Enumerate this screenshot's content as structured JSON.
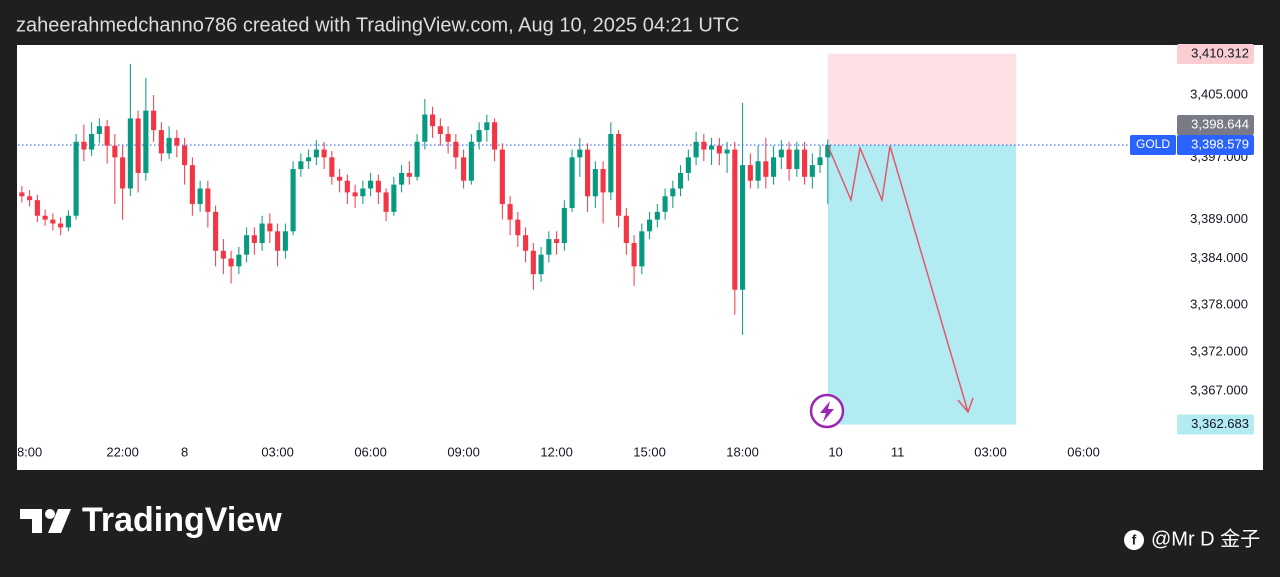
{
  "header": {
    "text": "zaheerahmedchanno786 created with TradingView.com, Aug 10, 2025 04:21 UTC"
  },
  "footer": {
    "logo": "TradingView",
    "credit": "@Mr D 金子"
  },
  "chart_data": {
    "type": "candlestick",
    "up_color": "#089981",
    "down_color": "#f23645",
    "x": [
      0,
      1,
      2,
      3,
      4,
      5,
      6,
      7,
      8,
      9,
      10,
      11,
      12,
      13,
      14,
      15,
      16,
      17,
      18,
      19,
      20,
      21,
      22,
      23,
      24,
      25,
      26,
      27,
      28,
      29,
      30,
      31,
      32,
      33,
      34,
      35,
      36,
      37,
      38,
      39,
      40,
      41,
      42,
      43,
      44,
      45,
      46,
      47,
      48,
      49,
      50,
      51,
      52,
      53,
      54,
      55,
      56,
      57,
      58,
      59,
      60,
      61,
      62,
      63,
      64,
      65,
      66,
      67,
      68,
      69,
      70,
      71,
      72,
      73,
      74,
      75,
      76,
      77,
      78,
      79,
      80,
      81,
      82,
      83,
      84,
      85,
      86,
      87,
      88,
      89,
      90,
      91,
      92,
      93,
      94,
      95,
      96,
      97,
      98,
      99,
      100,
      101,
      102,
      103,
      104
    ],
    "open": [
      3392.5,
      3392.0,
      3391.5,
      3389.5,
      3389.0,
      3388.5,
      3388.0,
      3389.5,
      3399.0,
      3398.0,
      3400.0,
      3401.0,
      3398.5,
      3397.0,
      3393.0,
      3402.0,
      3395.0,
      3403.0,
      3400.5,
      3397.5,
      3399.5,
      3398.5,
      3396.0,
      3391.0,
      3393.0,
      3390.0,
      3385.0,
      3384.0,
      3383.0,
      3384.5,
      3387.0,
      3386.0,
      3388.5,
      3387.5,
      3385.0,
      3387.5,
      3395.5,
      3396.5,
      3397.0,
      3398.0,
      3397.0,
      3394.5,
      3394.0,
      3392.5,
      3392.0,
      3393.0,
      3394.0,
      3392.5,
      3390.0,
      3393.5,
      3395.0,
      3394.5,
      3399.0,
      3402.5,
      3401.0,
      3400.0,
      3399.0,
      3397.0,
      3394.0,
      3399.0,
      3400.5,
      3401.5,
      3398.0,
      3391.0,
      3389.0,
      3387.0,
      3385.0,
      3382.0,
      3384.5,
      3386.5,
      3386.0,
      3390.5,
      3397.0,
      3398.0,
      3392.0,
      3395.5,
      3392.5,
      3400.0,
      3389.5,
      3386.0,
      3383.0,
      3387.5,
      3389.0,
      3390.0,
      3392.0,
      3393.0,
      3395.0,
      3397.0,
      3399.0,
      3398.0,
      3398.5,
      3397.5,
      3398.0,
      3380.0,
      3396.0,
      3394.0,
      3396.5,
      3394.5,
      3397.0,
      3398.0,
      3395.5,
      3398.0,
      3394.5,
      3396.0,
      3397.0
    ],
    "high": [
      3393.3,
      3392.8,
      3392.2,
      3390.3,
      3389.8,
      3389.3,
      3390.2,
      3400.0,
      3401.2,
      3401.5,
      3402.0,
      3401.8,
      3400.0,
      3398.5,
      3409.0,
      3403.0,
      3407.2,
      3405.0,
      3401.5,
      3401.0,
      3400.5,
      3399.5,
      3397.0,
      3394.0,
      3394.0,
      3390.8,
      3386.5,
      3385.0,
      3385.5,
      3388.0,
      3388.0,
      3389.5,
      3389.8,
      3388.5,
      3388.5,
      3396.5,
      3397.5,
      3398.0,
      3399.2,
      3399.0,
      3397.8,
      3395.5,
      3394.8,
      3393.5,
      3394.0,
      3395.0,
      3394.8,
      3393.0,
      3394.5,
      3396.0,
      3396.5,
      3400.0,
      3404.5,
      3403.5,
      3402.0,
      3401.0,
      3400.0,
      3398.0,
      3400.0,
      3401.5,
      3402.5,
      3402.0,
      3398.8,
      3392.0,
      3390.0,
      3388.0,
      3386.0,
      3385.5,
      3387.5,
      3387.5,
      3391.5,
      3398.0,
      3399.5,
      3398.8,
      3396.5,
      3396.5,
      3401.5,
      3400.5,
      3390.5,
      3387.0,
      3388.5,
      3390.0,
      3391.0,
      3393.0,
      3394.0,
      3396.0,
      3398.0,
      3400.3,
      3400.0,
      3399.5,
      3399.5,
      3399.0,
      3399.0,
      3404.0,
      3397.5,
      3398.5,
      3399.5,
      3398.5,
      3399.2,
      3399.0,
      3399.0,
      3399.0,
      3397.5,
      3398.5,
      3399.3
    ],
    "low": [
      3391.2,
      3390.7,
      3388.7,
      3388.2,
      3387.6,
      3387.0,
      3387.5,
      3389.0,
      3396.5,
      3397.2,
      3398.8,
      3396.2,
      3391.0,
      3389.0,
      3392.0,
      3392.5,
      3394.0,
      3399.0,
      3396.5,
      3396.8,
      3397.0,
      3393.5,
      3389.5,
      3390.0,
      3388.0,
      3383.0,
      3382.0,
      3380.8,
      3382.0,
      3383.5,
      3384.5,
      3385.0,
      3386.0,
      3383.0,
      3384.0,
      3387.0,
      3394.5,
      3395.5,
      3396.0,
      3395.5,
      3393.5,
      3392.5,
      3391.0,
      3390.5,
      3391.0,
      3392.0,
      3391.0,
      3388.8,
      3389.5,
      3392.5,
      3393.5,
      3394.0,
      3398.0,
      3399.5,
      3398.5,
      3397.5,
      3395.5,
      3393.0,
      3393.5,
      3398.0,
      3399.0,
      3396.5,
      3389.0,
      3387.0,
      3385.5,
      3383.5,
      3380.0,
      3381.0,
      3383.5,
      3384.5,
      3385.0,
      3390.0,
      3394.5,
      3390.0,
      3390.5,
      3388.5,
      3391.5,
      3388.0,
      3384.5,
      3380.5,
      3382.0,
      3386.5,
      3388.0,
      3389.0,
      3390.5,
      3392.0,
      3394.0,
      3396.0,
      3396.5,
      3396.0,
      3396.0,
      3395.0,
      3376.8,
      3374.2,
      3393.0,
      3393.0,
      3393.0,
      3393.5,
      3395.5,
      3394.0,
      3394.5,
      3393.5,
      3393.0,
      3395.0,
      3391.0
    ],
    "close": [
      3392.0,
      3391.5,
      3389.5,
      3389.0,
      3388.5,
      3388.0,
      3389.5,
      3399.0,
      3398.0,
      3400.0,
      3401.0,
      3398.5,
      3397.0,
      3393.0,
      3402.0,
      3395.0,
      3403.0,
      3400.5,
      3397.5,
      3399.5,
      3398.5,
      3396.0,
      3391.0,
      3393.0,
      3390.0,
      3385.0,
      3384.0,
      3383.0,
      3384.5,
      3387.0,
      3386.0,
      3388.5,
      3387.5,
      3385.0,
      3387.5,
      3395.5,
      3396.5,
      3397.0,
      3398.0,
      3397.0,
      3394.5,
      3394.0,
      3392.5,
      3392.0,
      3393.0,
      3394.0,
      3392.5,
      3390.0,
      3393.5,
      3395.0,
      3394.5,
      3399.0,
      3402.5,
      3401.0,
      3400.0,
      3399.0,
      3397.0,
      3394.0,
      3399.0,
      3400.5,
      3401.5,
      3398.0,
      3391.0,
      3389.0,
      3387.0,
      3385.0,
      3382.0,
      3384.5,
      3386.5,
      3386.0,
      3390.5,
      3397.0,
      3398.0,
      3392.0,
      3395.5,
      3392.5,
      3400.0,
      3389.5,
      3386.0,
      3383.0,
      3387.5,
      3389.0,
      3390.0,
      3392.0,
      3393.0,
      3395.0,
      3397.0,
      3399.0,
      3398.0,
      3398.5,
      3397.5,
      3398.0,
      3380.0,
      3396.0,
      3394.0,
      3396.5,
      3394.5,
      3397.0,
      3398.0,
      3395.5,
      3398.0,
      3394.5,
      3396.0,
      3397.0,
      3398.6
    ],
    "xlim": [
      -0.5,
      148.8
    ],
    "xticks": [
      {
        "value": 1,
        "label": "8:00"
      },
      {
        "value": 13,
        "label": "22:00"
      },
      {
        "value": 21,
        "label": "8"
      },
      {
        "value": 33,
        "label": "03:00"
      },
      {
        "value": 45,
        "label": "06:00"
      },
      {
        "value": 57,
        "label": "09:00"
      },
      {
        "value": 69,
        "label": "12:00"
      },
      {
        "value": 81,
        "label": "15:00"
      },
      {
        "value": 93,
        "label": "18:00"
      },
      {
        "value": 105,
        "label": "10"
      },
      {
        "value": 113,
        "label": "11"
      },
      {
        "value": 125,
        "label": "03:00"
      },
      {
        "value": 137,
        "label": "06:00"
      }
    ],
    "ylim": [
      3360.7,
      3411.3
    ],
    "yticks": [
      {
        "value": 3405,
        "label": "3,405.000"
      },
      {
        "value": 3397,
        "label": "3,397.000"
      },
      {
        "value": 3389,
        "label": "3,389.000"
      },
      {
        "value": 3384,
        "label": "3,384.000"
      },
      {
        "value": 3378,
        "label": "3,378.000"
      },
      {
        "value": 3372,
        "label": "3,372.000"
      },
      {
        "value": 3367,
        "label": "3,367.000"
      }
    ],
    "position": {
      "start": 104,
      "end": 128.3,
      "entry": 3398.579,
      "stop": 3410.312,
      "target": 3362.683,
      "stop_color": "#fde1e4",
      "target_color": "#b2ebf2"
    },
    "price_markers": [
      {
        "value": 3410.312,
        "label": "3,410.312",
        "color": "#f9cdd2",
        "text_color": "#131722"
      },
      {
        "value": 3398.644,
        "label": "3,398.644",
        "color": "#787b86",
        "text_color": "#ffffff"
      },
      {
        "value": 3362.683,
        "label": "3,362.683",
        "color": "#b2ebf2",
        "text_color": "#131722"
      }
    ],
    "last_price": {
      "symbol": "GOLD",
      "value": 3398.579,
      "label": "3,398.579",
      "color": "#2962ff"
    }
  }
}
